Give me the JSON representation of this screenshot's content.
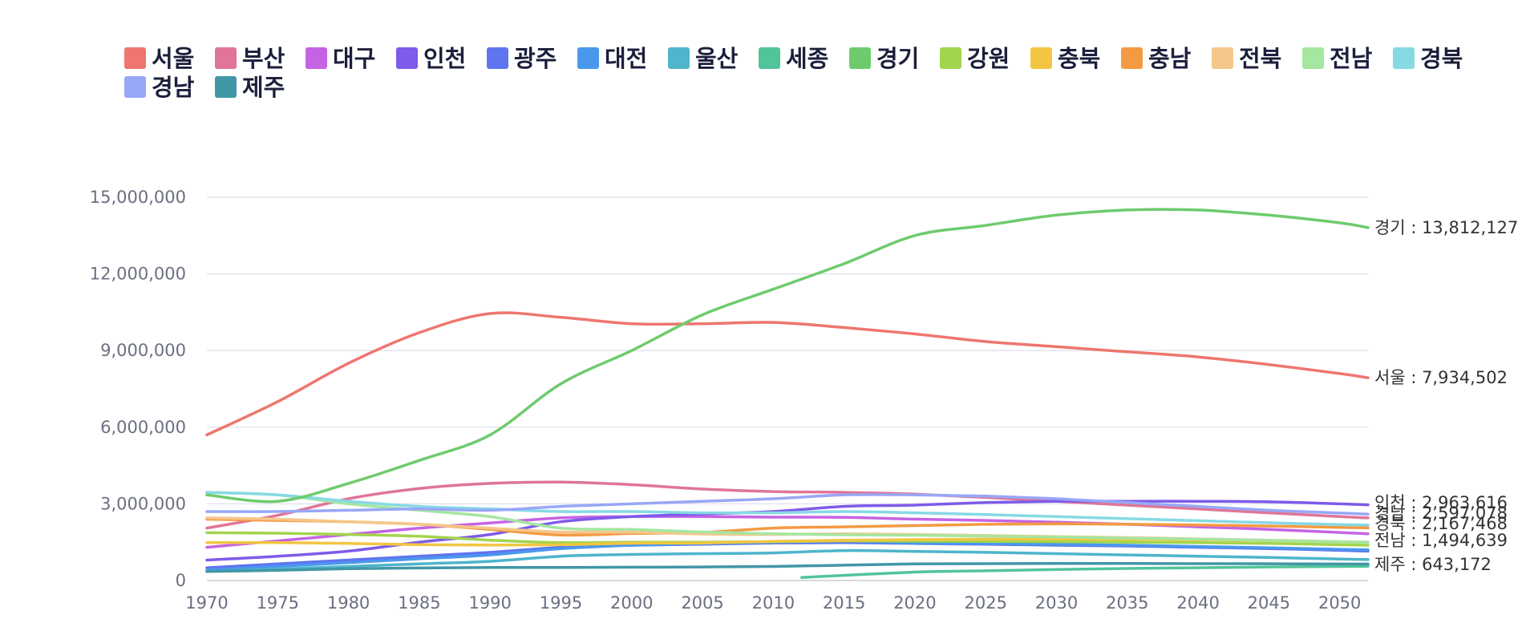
{
  "chart_data": {
    "type": "line",
    "x": [
      1970,
      1975,
      1980,
      1985,
      1990,
      1995,
      2000,
      2005,
      2010,
      2015,
      2020,
      2025,
      2030,
      2035,
      2040,
      2045,
      2050,
      2052
    ],
    "xticks": [
      "1970",
      "1975",
      "1980",
      "1985",
      "1990",
      "1995",
      "2000",
      "2005",
      "2010",
      "2015",
      "2020",
      "2025",
      "2030",
      "2035",
      "2040",
      "2045",
      "2050"
    ],
    "xlim": [
      1970,
      2052
    ],
    "yticks": [
      "0",
      "3,000,000",
      "6,000,000",
      "9,000,000",
      "12,000,000",
      "15,000,000"
    ],
    "ylim": [
      0,
      15000000
    ],
    "grid": true,
    "legend_position": "top-left",
    "series": [
      {
        "name": "서울",
        "color": "#ee766f",
        "values": [
          5700000,
          7000000,
          8500000,
          9700000,
          10450000,
          10300000,
          10050000,
          10050000,
          10100000,
          9900000,
          9650000,
          9350000,
          9150000,
          8950000,
          8750000,
          8450000,
          8100000,
          7934502
        ]
      },
      {
        "name": "부산",
        "color": "#e07598",
        "values": [
          2050000,
          2550000,
          3200000,
          3600000,
          3800000,
          3850000,
          3750000,
          3580000,
          3480000,
          3450000,
          3380000,
          3250000,
          3100000,
          2950000,
          2800000,
          2650000,
          2500000,
          2450000
        ]
      },
      {
        "name": "대구",
        "color": "#c564e3",
        "values": [
          1300000,
          1550000,
          1800000,
          2050000,
          2250000,
          2450000,
          2500000,
          2500000,
          2480000,
          2470000,
          2400000,
          2350000,
          2280000,
          2200000,
          2100000,
          2000000,
          1880000,
          1830000
        ]
      },
      {
        "name": "인천",
        "color": "#7e5be8",
        "values": [
          800000,
          950000,
          1150000,
          1500000,
          1800000,
          2300000,
          2500000,
          2600000,
          2700000,
          2900000,
          2950000,
          3050000,
          3100000,
          3100000,
          3100000,
          3080000,
          3000000,
          2963616
        ]
      },
      {
        "name": "광주",
        "color": "#5f75ef",
        "values": [
          500000,
          650000,
          800000,
          950000,
          1100000,
          1300000,
          1380000,
          1420000,
          1470000,
          1480000,
          1450000,
          1420000,
          1380000,
          1350000,
          1300000,
          1250000,
          1180000,
          1150000
        ]
      },
      {
        "name": "대전",
        "color": "#4a98ec",
        "values": [
          400000,
          550000,
          700000,
          850000,
          1000000,
          1250000,
          1380000,
          1450000,
          1500000,
          1550000,
          1470000,
          1450000,
          1420000,
          1380000,
          1330000,
          1280000,
          1220000,
          1200000
        ]
      },
      {
        "name": "울산",
        "color": "#4eb5cc",
        "values": [
          350000,
          450000,
          550000,
          650000,
          750000,
          950000,
          1020000,
          1050000,
          1080000,
          1170000,
          1140000,
          1100000,
          1050000,
          1000000,
          950000,
          900000,
          840000,
          820000
        ]
      },
      {
        "name": "세종",
        "color": "#52c49a",
        "values": [
          null,
          null,
          null,
          null,
          null,
          null,
          null,
          null,
          null,
          null,
          330000,
          380000,
          430000,
          470000,
          500000,
          530000,
          550000,
          560000
        ]
      },
      {
        "name": "경기",
        "color": "#6ecb6d",
        "values": [
          3350000,
          3100000,
          3800000,
          4700000,
          5700000,
          7700000,
          9000000,
          10400000,
          11400000,
          12400000,
          13500000,
          13900000,
          14300000,
          14500000,
          14500000,
          14300000,
          14000000,
          13812127
        ]
      },
      {
        "name": "강원",
        "color": "#a3d44d",
        "values": [
          1870000,
          1850000,
          1800000,
          1730000,
          1580000,
          1480000,
          1500000,
          1500000,
          1520000,
          1550000,
          1540000,
          1530000,
          1520000,
          1500000,
          1480000,
          1450000,
          1400000,
          1380000
        ]
      },
      {
        "name": "충북",
        "color": "#f2c643",
        "values": [
          1480000,
          1480000,
          1450000,
          1400000,
          1390000,
          1400000,
          1460000,
          1470000,
          1530000,
          1580000,
          1600000,
          1620000,
          1620000,
          1610000,
          1590000,
          1560000,
          1520000,
          1500000
        ]
      },
      {
        "name": "충남",
        "color": "#f39a43",
        "values": [
          2400000,
          2350000,
          2300000,
          2200000,
          2000000,
          1780000,
          1840000,
          1880000,
          2050000,
          2100000,
          2150000,
          2200000,
          2220000,
          2200000,
          2170000,
          2130000,
          2080000,
          2060000
        ]
      },
      {
        "name": "전북",
        "color": "#f5c78b",
        "values": [
          2450000,
          2400000,
          2300000,
          2200000,
          2050000,
          1900000,
          1890000,
          1820000,
          1800000,
          1830000,
          1800000,
          1760000,
          1720000,
          1680000,
          1630000,
          1580000,
          1520000,
          1500000
        ]
      },
      {
        "name": "전남",
        "color": "#a5e6a1",
        "values": [
          3450000,
          3350000,
          3000000,
          2750000,
          2500000,
          2050000,
          2000000,
          1900000,
          1830000,
          1790000,
          1770000,
          1740000,
          1700000,
          1660000,
          1620000,
          1570000,
          1510000,
          1494639
        ]
      },
      {
        "name": "경북",
        "color": "#87d9e4",
        "values": [
          3450000,
          3350000,
          3100000,
          2900000,
          2800000,
          2700000,
          2700000,
          2650000,
          2650000,
          2700000,
          2650000,
          2580000,
          2500000,
          2420000,
          2340000,
          2260000,
          2190000,
          2167468
        ]
      },
      {
        "name": "경남",
        "color": "#98a7f6",
        "values": [
          2700000,
          2700000,
          2750000,
          2800000,
          2750000,
          2900000,
          3000000,
          3100000,
          3200000,
          3350000,
          3350000,
          3300000,
          3200000,
          3050000,
          2900000,
          2750000,
          2640000,
          2597078
        ]
      },
      {
        "name": "제주",
        "color": "#4197a6",
        "values": [
          350000,
          400000,
          460000,
          490000,
          510000,
          510000,
          520000,
          530000,
          550000,
          600000,
          650000,
          660000,
          665000,
          665000,
          660000,
          655000,
          645000,
          643172
        ]
      }
    ],
    "end_labels": [
      {
        "series": "경기",
        "text": "경기 : 13,812,127"
      },
      {
        "series": "서울",
        "text": "서울 : 7,934,502"
      },
      {
        "series": "인천",
        "text": "인천 : 2,963,616"
      },
      {
        "series": "경남",
        "text": "경남 : 2,597,078"
      },
      {
        "series": "경북",
        "text": "경북 : 2,167,468"
      },
      {
        "series": "전남",
        "text": "전남 : 1,494,639"
      },
      {
        "series": "제주",
        "text": "제주 : 643,172"
      }
    ]
  }
}
